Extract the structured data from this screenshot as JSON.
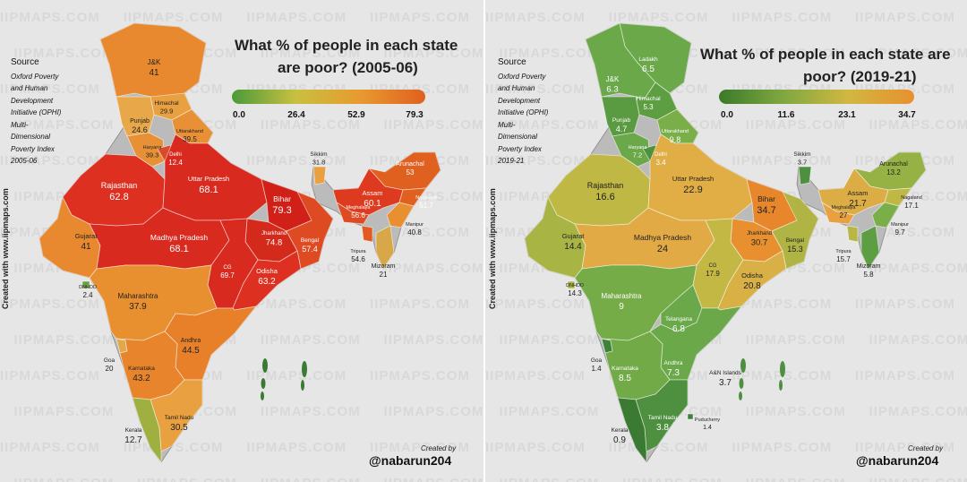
{
  "left": {
    "title_line1": "What % of people in each state",
    "title_line2": "are poor? (2005-06)",
    "scale_ticks": [
      "0.0",
      "26.4",
      "52.9",
      "79.3"
    ],
    "scale_colors": [
      "#4a9a3a",
      "#c8c040",
      "#e89a30",
      "#e06020"
    ],
    "source_heading": "Source",
    "source_lines": [
      "Oxford Poverty",
      "and Human",
      "Development",
      "Initiative (OPHI)",
      "Multi-",
      "Dimensional",
      "Poverty Index",
      "2005-06"
    ],
    "side_text": "Created with www.iipmaps.com",
    "created_by": "Created by",
    "handle": "@nabarun204",
    "states": [
      {
        "name": "J&K",
        "value": "41",
        "color": "#e8892f"
      },
      {
        "name": "Himachal",
        "value": "29.9",
        "color": "#e8a040"
      },
      {
        "name": "Punjab",
        "value": "24.6",
        "color": "#e8a84a"
      },
      {
        "name": "Uttarakhand",
        "value": "39.5",
        "color": "#e89035"
      },
      {
        "name": "Haryana",
        "value": "39.3",
        "color": "#e89035"
      },
      {
        "name": "Delhi",
        "value": "12.4",
        "color": "#d84a2a"
      },
      {
        "name": "Rajasthan",
        "value": "62.8",
        "color": "#dd3020"
      },
      {
        "name": "Uttar Pradesh",
        "value": "68.1",
        "color": "#d82a1e"
      },
      {
        "name": "Bihar",
        "value": "79.3",
        "color": "#d02018"
      },
      {
        "name": "Sikkim",
        "value": "31.8",
        "color": "#e8a040"
      },
      {
        "name": "Arunachal",
        "value": "53",
        "color": "#e06020"
      },
      {
        "name": "Assam",
        "value": "60.1",
        "color": "#dd3a20"
      },
      {
        "name": "Nagaland",
        "value": "51.7",
        "color": "#e06020"
      },
      {
        "name": "Meghalaya",
        "value": "56.6",
        "color": "#de4a22"
      },
      {
        "name": "Manipur",
        "value": "40.8",
        "color": "#e8902f"
      },
      {
        "name": "Tripura",
        "value": "54.6",
        "color": "#e05a22"
      },
      {
        "name": "Mizoram",
        "value": "21",
        "color": "#d8a848"
      },
      {
        "name": "Gujarat",
        "value": "41",
        "color": "#e8892f"
      },
      {
        "name": "Madhya Pradesh",
        "value": "68.1",
        "color": "#d82a1e"
      },
      {
        "name": "Jharkhand",
        "value": "74.8",
        "color": "#d42a1c"
      },
      {
        "name": "Bengal",
        "value": "57.4",
        "color": "#de4a22"
      },
      {
        "name": "CG",
        "value": "69.7",
        "color": "#d82a1e"
      },
      {
        "name": "Odisha",
        "value": "63.2",
        "color": "#dd3020"
      },
      {
        "name": "DNHDD",
        "value": "2.4",
        "color": "#6aa040"
      },
      {
        "name": "Maharashtra",
        "value": "37.9",
        "color": "#e8902f"
      },
      {
        "name": "Andhra",
        "value": "44.5",
        "color": "#e8802a"
      },
      {
        "name": "Goa",
        "value": "20",
        "color": "#e0a848"
      },
      {
        "name": "Karnataka",
        "value": "43.2",
        "color": "#e8852c"
      },
      {
        "name": "Tamil Nadu",
        "value": "30.5",
        "color": "#e8a040"
      },
      {
        "name": "Kerala",
        "value": "12.7",
        "color": "#a0b040"
      }
    ]
  },
  "right": {
    "title_line1": "What % of people in each state are",
    "title_line2": "poor? (2019-21)",
    "scale_ticks": [
      "0.0",
      "11.6",
      "23.1",
      "34.7"
    ],
    "scale_colors": [
      "#3a7a2a",
      "#80a840",
      "#d0b840",
      "#e8902f"
    ],
    "source_heading": "Source",
    "source_lines": [
      "Oxford Poverty",
      "and Human",
      "Development",
      "Initiative (OPHI)",
      "Multi-",
      "Dimensional",
      "Poverty Index",
      "2019-21"
    ],
    "side_text": "Created with www.iipmaps.com",
    "created_by": "Created by",
    "handle": "@nabarun204",
    "states": [
      {
        "name": "Ladakh",
        "value": "6.5",
        "color": "#6aa84a"
      },
      {
        "name": "J&K",
        "value": "6.3",
        "color": "#6aa84a"
      },
      {
        "name": "Himachal",
        "value": "5.3",
        "color": "#5e9e42"
      },
      {
        "name": "Punjab",
        "value": "4.7",
        "color": "#5a9a40"
      },
      {
        "name": "Uttarakhand",
        "value": "9.8",
        "color": "#7aae48"
      },
      {
        "name": "Haryana",
        "value": "7.2",
        "color": "#6aa84a"
      },
      {
        "name": "Delhi",
        "value": "3.4",
        "color": "#4e9040"
      },
      {
        "name": "Rajasthan",
        "value": "16.6",
        "color": "#c0b844"
      },
      {
        "name": "Uttar Pradesh",
        "value": "22.9",
        "color": "#e0ae45"
      },
      {
        "name": "Bihar",
        "value": "34.7",
        "color": "#e8862c"
      },
      {
        "name": "Sikkim",
        "value": "3.7",
        "color": "#4e9040"
      },
      {
        "name": "Arunachal",
        "value": "13.2",
        "color": "#96b244"
      },
      {
        "name": "Assam",
        "value": "21.7",
        "color": "#dcac45"
      },
      {
        "name": "Nagaland",
        "value": "17.1",
        "color": "#c0b844"
      },
      {
        "name": "Meghalaya",
        "value": "27",
        "color": "#e8a040"
      },
      {
        "name": "Manipur",
        "value": "9.7",
        "color": "#7aae48"
      },
      {
        "name": "Tripura",
        "value": "15.7",
        "color": "#b8b644"
      },
      {
        "name": "Mizoram",
        "value": "5.8",
        "color": "#5e9e42"
      },
      {
        "name": "Gujarat",
        "value": "14.4",
        "color": "#a8b444"
      },
      {
        "name": "Madhya Pradesh",
        "value": "24",
        "color": "#e2aa45"
      },
      {
        "name": "Jharkhand",
        "value": "30.7",
        "color": "#e8902f"
      },
      {
        "name": "Bengal",
        "value": "15.3",
        "color": "#b0b444"
      },
      {
        "name": "CG",
        "value": "17.9",
        "color": "#c4b844"
      },
      {
        "name": "Odisha",
        "value": "20.8",
        "color": "#d8b045"
      },
      {
        "name": "DNHDD",
        "value": "14.3",
        "color": "#a8b444"
      },
      {
        "name": "Maharashtra",
        "value": "9",
        "color": "#76ac48"
      },
      {
        "name": "Telangana",
        "value": "6.8",
        "color": "#6aa84a"
      },
      {
        "name": "Goa",
        "value": "1.4",
        "color": "#3e8238"
      },
      {
        "name": "Andhra",
        "value": "7.3",
        "color": "#6aa84a"
      },
      {
        "name": "Karnataka",
        "value": "8.5",
        "color": "#72aa48"
      },
      {
        "name": "A&N Islands",
        "value": "3.7",
        "color": "#4e9040"
      },
      {
        "name": "Tamil Nadu",
        "value": "3.8",
        "color": "#4e9040"
      },
      {
        "name": "Puducherry",
        "value": "1.4",
        "color": "#3e8238"
      },
      {
        "name": "Kerala",
        "value": "0.9",
        "color": "#3a7a32"
      }
    ]
  }
}
